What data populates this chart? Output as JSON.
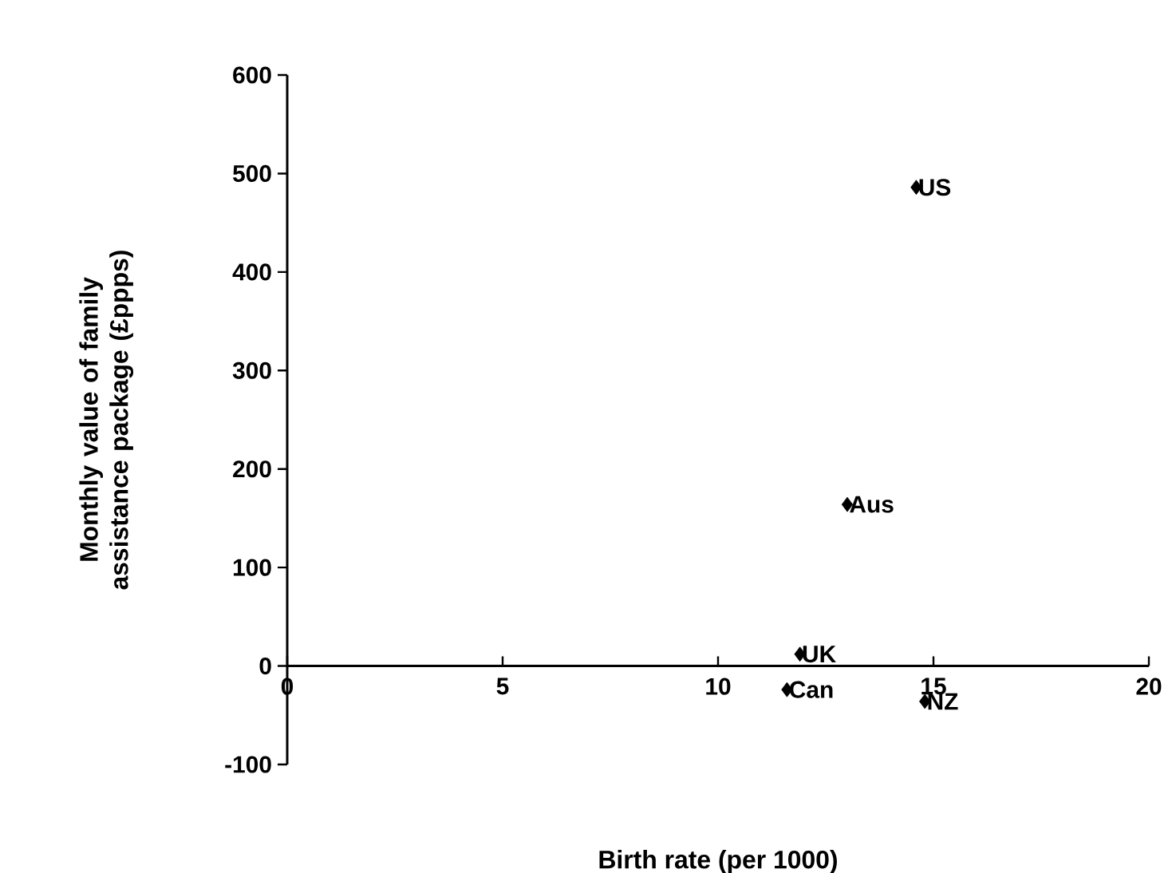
{
  "chart_data": {
    "type": "scatter",
    "xlabel": "Birth rate (per 1000)",
    "ylabel": "Monthly value of family assistance package (£ppps)",
    "x": [
      14.6,
      13.0,
      11.9,
      11.6,
      14.8
    ],
    "values": [
      486,
      164,
      12,
      -24,
      -36
    ],
    "color": "#000000",
    "marker": "diamond",
    "grid": false,
    "xlim": [
      0,
      20
    ],
    "xticks": [
      0,
      5,
      10,
      15,
      20
    ],
    "ylim": [
      -100,
      600
    ],
    "yticks": [
      -100,
      0,
      100,
      200,
      300,
      400,
      500,
      600
    ],
    "annotations": [
      {
        "text": "US",
        "x": 14.6,
        "y": 486
      },
      {
        "text": "Aus",
        "x": 13.0,
        "y": 164
      },
      {
        "text": "UK",
        "x": 11.9,
        "y": 12
      },
      {
        "text": "Can",
        "x": 11.6,
        "y": -24
      },
      {
        "text": "NZ",
        "x": 14.8,
        "y": -36
      }
    ]
  }
}
